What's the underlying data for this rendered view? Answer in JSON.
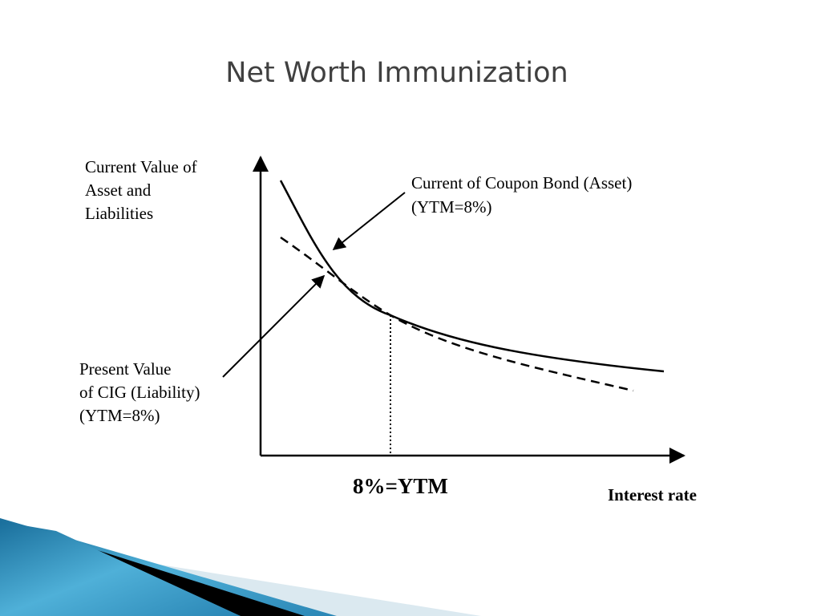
{
  "title": "Net Worth Immunization",
  "y_axis_label": [
    "Current Value of",
    "Asset and",
    "Liabilities"
  ],
  "asset_label": [
    "Current of Coupon Bond (Asset)",
    "(YTM=8%)"
  ],
  "liability_label": [
    "Present Value",
    "of CIG (Liability)",
    "(YTM=8%)"
  ],
  "ytm_label": "8%=YTM",
  "x_axis_label": "Interest rate"
}
